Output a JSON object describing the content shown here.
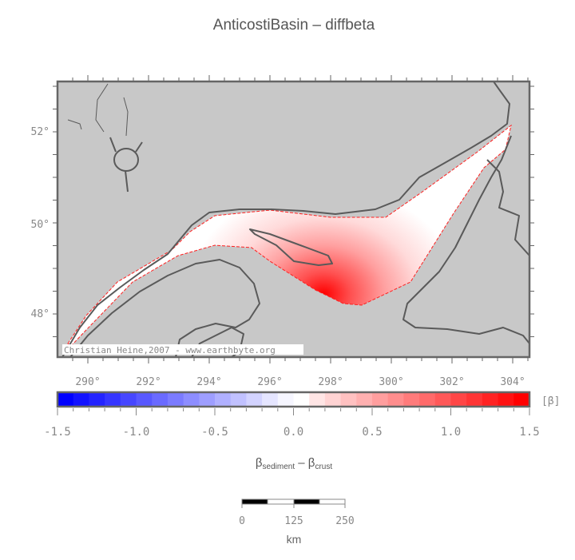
{
  "title": "AnticostiBasin – diffbeta",
  "map": {
    "lon_labels": [
      "290°",
      "292°",
      "294°",
      "296°",
      "298°",
      "300°",
      "302°",
      "304°"
    ],
    "lat_labels": [
      "52°",
      "50°",
      "48°"
    ],
    "credit": "Christian Heine,2007 - www.earthbyte.org",
    "land_color": "#c8c8c8",
    "coast_color": "#5a5a5a"
  },
  "colorbar": {
    "unit": "[β]",
    "tick_labels": [
      "-1.5",
      "-1.0",
      "-0.5",
      "0.0",
      "0.5",
      "1.0",
      "1.5"
    ],
    "min": -1.5,
    "max": 1.5,
    "step": 0.1,
    "low_color": "#0000ff",
    "mid_color": "#ffffff",
    "high_color": "#ff0000",
    "label_main1": "β",
    "label_sub1": "sediment",
    "label_sep": " – ",
    "label_main2": "β",
    "label_sub2": "crust"
  },
  "scalebar": {
    "labels": [
      "0",
      "125",
      "250"
    ],
    "unit": "km"
  }
}
